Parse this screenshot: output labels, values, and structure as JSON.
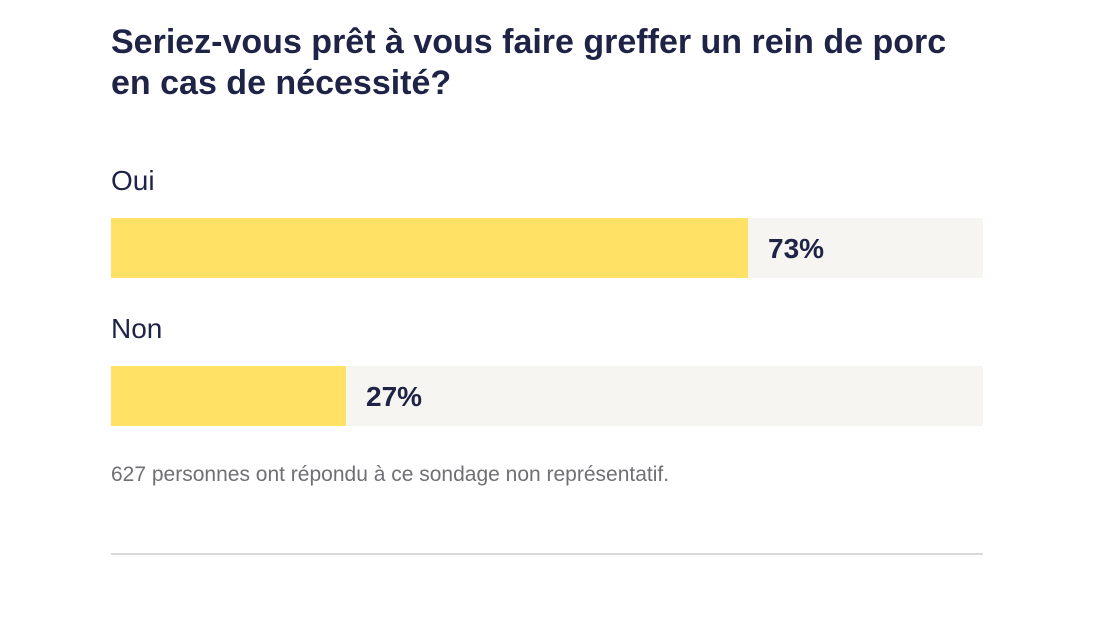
{
  "chart_data": {
    "type": "bar",
    "orientation": "horizontal",
    "title": "Seriez-vous prêt à vous faire greffer un rein de porc en cas de nécessité?",
    "categories": [
      "Oui",
      "Non"
    ],
    "values": [
      73,
      27
    ],
    "value_labels": [
      "73%",
      "27%"
    ],
    "unit": "%",
    "xlim": [
      0,
      100
    ],
    "grid": false,
    "legend": "none",
    "note": "627 personnes ont répondu à ce sondage non représentatif."
  },
  "colors": {
    "bar_fill": "#ffe165",
    "bar_track": "#f6f5f1",
    "text": "#1f2447",
    "note": "#6f6f74",
    "divider": "#d9d9d9"
  }
}
